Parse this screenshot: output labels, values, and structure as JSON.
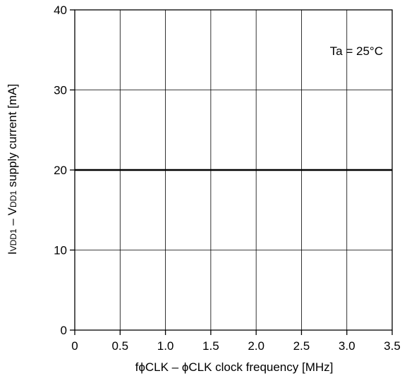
{
  "chart_data": {
    "type": "line",
    "title": "",
    "xlabel": "fϕCLK – ϕCLK clock frequency [MHz]",
    "ylabel": "I",
    "ylabel_sub_1": "VDD1",
    "ylabel_mid": " – V",
    "ylabel_sub_2": "DD1",
    "ylabel_tail": " supply current [mA]",
    "xlim": [
      0,
      3.5
    ],
    "ylim": [
      0,
      40
    ],
    "x_ticks": [
      0,
      0.5,
      1.0,
      1.5,
      2.0,
      2.5,
      3.0,
      3.5
    ],
    "x_tick_labels": [
      "0",
      "0.5",
      "1.0",
      "1.5",
      "2.0",
      "2.5",
      "3.0",
      "3.5"
    ],
    "y_ticks": [
      0,
      10,
      20,
      30,
      40
    ],
    "y_tick_labels": [
      "0",
      "10",
      "20",
      "30",
      "40"
    ],
    "grid": true,
    "annotation": "Ta = 25°C",
    "series": [
      {
        "x": [
          0,
          3.5
        ],
        "values": [
          20,
          20
        ]
      }
    ]
  }
}
